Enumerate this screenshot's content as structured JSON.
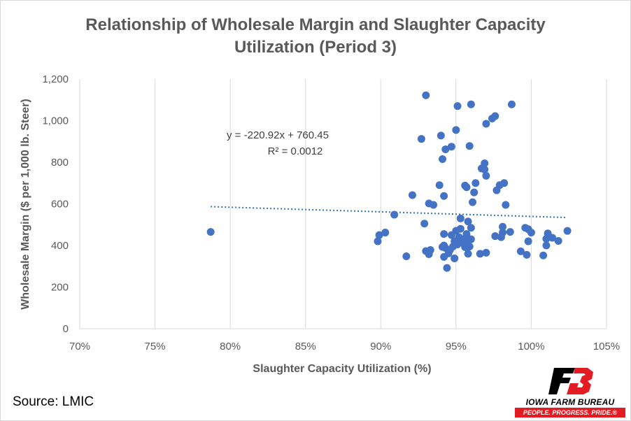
{
  "chart_data": {
    "type": "scatter",
    "title_line1": "Relationship of Wholesale Margin and Slaughter Capacity",
    "title_line2": "Utilization (Period 3)",
    "xlabel": "Slaughter Capacity Utilization (%)",
    "ylabel": "Wholesale Margin ($ per 1,000 lb. Steer)",
    "xlim": [
      70,
      105
    ],
    "ylim": [
      0,
      1200
    ],
    "x_ticks": [
      70,
      75,
      80,
      85,
      90,
      95,
      100,
      105
    ],
    "x_tick_labels": [
      "70%",
      "75%",
      "80%",
      "85%",
      "90%",
      "95%",
      "100%",
      "105%"
    ],
    "y_ticks": [
      0,
      200,
      400,
      600,
      800,
      1000,
      1200
    ],
    "y_tick_labels": [
      "0",
      "200",
      "400",
      "600",
      "800",
      "1,000",
      "1,200"
    ],
    "grid": "vertical",
    "marker_color": "#4472c4",
    "trendline": {
      "style": "dotted",
      "color": "#2e75b6",
      "x_range": [
        78.7,
        102.3
      ],
      "slope": -220.92,
      "intercept": 760.45,
      "equation": "y = -220.92x + 760.45",
      "r_squared": "R² = 0.0012"
    },
    "points": [
      [
        78.7,
        465
      ],
      [
        89.8,
        420
      ],
      [
        89.9,
        450
      ],
      [
        90.3,
        462
      ],
      [
        90.9,
        548
      ],
      [
        91.7,
        348
      ],
      [
        92.1,
        642
      ],
      [
        92.7,
        912
      ],
      [
        93.0,
        1122
      ],
      [
        92.9,
        505
      ],
      [
        93.0,
        373
      ],
      [
        93.2,
        358
      ],
      [
        93.3,
        378
      ],
      [
        93.2,
        602
      ],
      [
        93.5,
        595
      ],
      [
        93.9,
        690
      ],
      [
        94.0,
        928
      ],
      [
        94.1,
        815
      ],
      [
        94.1,
        393
      ],
      [
        94.2,
        638
      ],
      [
        94.2,
        455
      ],
      [
        94.3,
        862
      ],
      [
        94.2,
        400
      ],
      [
        94.2,
        345
      ],
      [
        94.3,
        388
      ],
      [
        94.4,
        292
      ],
      [
        94.5,
        362
      ],
      [
        94.6,
        378
      ],
      [
        94.7,
        875
      ],
      [
        94.7,
        450
      ],
      [
        94.8,
        395
      ],
      [
        94.9,
        338
      ],
      [
        94.9,
        420
      ],
      [
        95.0,
        470
      ],
      [
        95.0,
        955
      ],
      [
        95.1,
        1070
      ],
      [
        95.1,
        405
      ],
      [
        95.2,
        440
      ],
      [
        95.3,
        480
      ],
      [
        95.3,
        530
      ],
      [
        95.4,
        430
      ],
      [
        95.5,
        410
      ],
      [
        95.6,
        688
      ],
      [
        95.6,
        392
      ],
      [
        95.7,
        455
      ],
      [
        95.7,
        680
      ],
      [
        95.7,
        420
      ],
      [
        95.8,
        515
      ],
      [
        95.8,
        360
      ],
      [
        95.9,
        878
      ],
      [
        95.9,
        395
      ],
      [
        96.0,
        1078
      ],
      [
        96.0,
        430
      ],
      [
        96.0,
        485
      ],
      [
        96.1,
        608
      ],
      [
        96.2,
        655
      ],
      [
        96.3,
        700
      ],
      [
        96.6,
        360
      ],
      [
        96.7,
        770
      ],
      [
        96.9,
        795
      ],
      [
        96.9,
        765
      ],
      [
        97.0,
        735
      ],
      [
        97.0,
        365
      ],
      [
        97.0,
        985
      ],
      [
        97.4,
        1010
      ],
      [
        97.6,
        1022
      ],
      [
        97.6,
        445
      ],
      [
        97.7,
        665
      ],
      [
        97.9,
        690
      ],
      [
        98.0,
        440
      ],
      [
        98.1,
        490
      ],
      [
        98.1,
        462
      ],
      [
        98.2,
        700
      ],
      [
        98.3,
        595
      ],
      [
        98.6,
        465
      ],
      [
        98.7,
        1078
      ],
      [
        99.3,
        372
      ],
      [
        99.6,
        485
      ],
      [
        99.7,
        355
      ],
      [
        99.8,
        478
      ],
      [
        99.8,
        420
      ],
      [
        100.0,
        462
      ],
      [
        100.8,
        352
      ],
      [
        101.0,
        400
      ],
      [
        101.0,
        432
      ],
      [
        101.1,
        458
      ],
      [
        101.4,
        437
      ],
      [
        101.8,
        422
      ],
      [
        102.4,
        470
      ]
    ]
  },
  "source_label": "Source: LMIC",
  "logo": {
    "name": "IOWA FARM BUREAU",
    "tagline": "PEOPLE. PROGRESS. PRIDE.®"
  }
}
